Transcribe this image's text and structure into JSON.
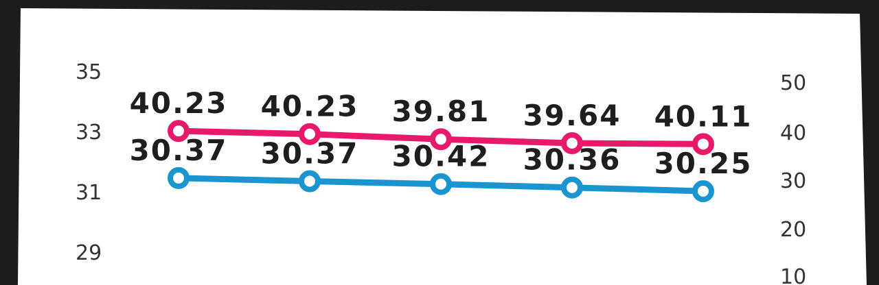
{
  "chart_data": {
    "type": "line",
    "title": "",
    "xlabel": "",
    "ylabel": "",
    "categories": [
      "",
      "",
      "",
      "",
      ""
    ],
    "left_axis": {
      "ticks": [
        "35",
        "33",
        "31",
        "29"
      ],
      "tick_values": [
        35,
        33,
        31,
        29
      ]
    },
    "right_axis": {
      "ticks": [
        "50",
        "40",
        "30",
        "20",
        "10"
      ],
      "tick_values": [
        50,
        40,
        30,
        20,
        10
      ],
      "ylim": [
        10,
        50
      ]
    },
    "grid": false,
    "legend": "none",
    "series": [
      {
        "color": "#e8196b",
        "values": [
          40.23,
          40.23,
          39.81,
          39.64,
          40.11
        ],
        "labels": [
          "40.23",
          "40.23",
          "39.81",
          "39.64",
          "40.11"
        ]
      },
      {
        "color": "#1b95cf",
        "values": [
          30.37,
          30.37,
          30.42,
          30.36,
          30.25
        ],
        "labels": [
          "30.37",
          "30.37",
          "30.42",
          "30.36",
          "30.25"
        ]
      }
    ]
  }
}
